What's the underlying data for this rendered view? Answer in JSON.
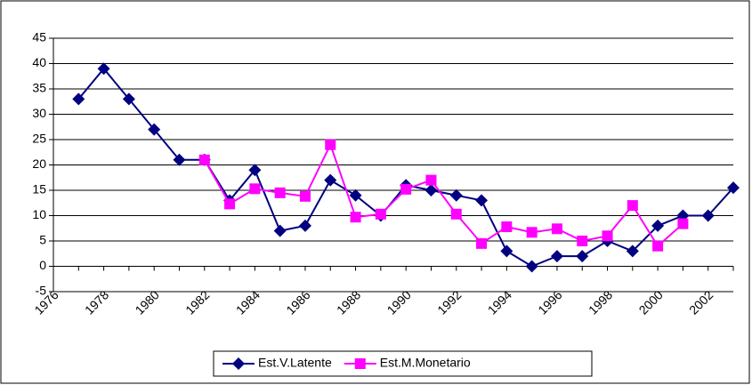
{
  "chart_data": {
    "type": "line",
    "categories": [
      "1976",
      null,
      "1978",
      null,
      "1980",
      null,
      "1982",
      null,
      "1984",
      null,
      "1986",
      null,
      "1988",
      null,
      "1990",
      null,
      "1992",
      null,
      "1994",
      null,
      "1996",
      null,
      "1998",
      null,
      "2000",
      null,
      "2002",
      null
    ],
    "series": [
      {
        "name": "Est.V.Latente",
        "color": "#000080",
        "marker": "diamond",
        "values": [
          null,
          33,
          39,
          33,
          27,
          21,
          21,
          13,
          19,
          7,
          8,
          17,
          14,
          10,
          16,
          15,
          14,
          13,
          3,
          0,
          2,
          2,
          5,
          3,
          8,
          10,
          10,
          15.5
        ]
      },
      {
        "name": "Est.M.Monetario",
        "color": "#ff00ff",
        "marker": "square",
        "values": [
          null,
          null,
          null,
          null,
          null,
          null,
          21,
          12.3,
          15.3,
          14.5,
          13.8,
          24,
          9.7,
          10.3,
          15.2,
          17,
          10.3,
          4.5,
          7.8,
          6.7,
          7.4,
          5,
          6,
          12,
          4,
          8.4,
          null,
          null
        ]
      }
    ],
    "ylim": [
      -5,
      45
    ],
    "yticks": [
      -5,
      0,
      5,
      10,
      15,
      20,
      25,
      30,
      35,
      40,
      45
    ],
    "grid": true,
    "legend": "bottom"
  }
}
